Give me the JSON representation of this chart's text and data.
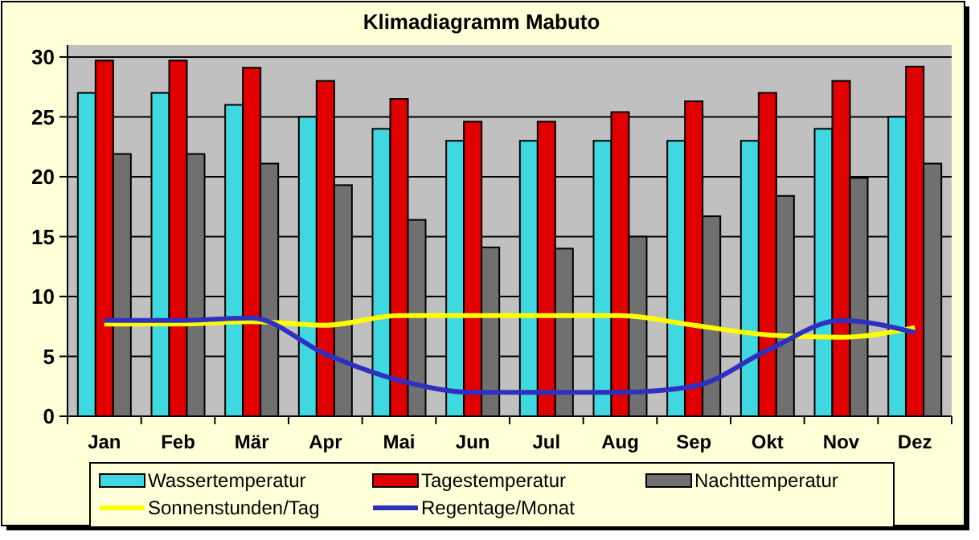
{
  "chart_data": {
    "type": "bar",
    "title": "Klimadiagramm Mabuto",
    "categories": [
      "Jan",
      "Feb",
      "Mär",
      "Apr",
      "Mai",
      "Jun",
      "Jul",
      "Aug",
      "Sep",
      "Okt",
      "Nov",
      "Dez"
    ],
    "series": [
      {
        "name": "Wassertemperatur",
        "color": "#40d8e0",
        "values": [
          27,
          27,
          26,
          25,
          24,
          23,
          23,
          23,
          23,
          23,
          24,
          25
        ]
      },
      {
        "name": "Tagestemperatur",
        "color": "#e00000",
        "values": [
          29.7,
          29.7,
          29.1,
          28,
          26.5,
          24.6,
          24.6,
          25.4,
          26.3,
          27,
          28,
          29.2
        ]
      },
      {
        "name": "Nachttemperatur",
        "color": "#707070",
        "values": [
          21.9,
          21.9,
          21.1,
          19.3,
          16.4,
          14.1,
          14,
          15,
          16.7,
          18.4,
          19.9,
          21.1
        ]
      },
      {
        "name": "Sonnenstunden/Tag",
        "type": "line",
        "color": "#ffff00",
        "values": [
          7.7,
          7.7,
          7.9,
          7.6,
          8.4,
          8.4,
          8.4,
          8.4,
          7.6,
          6.8,
          6.6,
          7.4
        ]
      },
      {
        "name": "Regentage/Monat",
        "type": "line",
        "color": "#3030c0",
        "values": [
          8,
          8,
          8.2,
          5.2,
          3,
          2,
          2,
          2,
          2.5,
          5.5,
          8,
          7
        ]
      }
    ],
    "ylim": [
      0,
      31
    ],
    "yticks": [
      0,
      5,
      10,
      15,
      20,
      25,
      30
    ],
    "grid": "y",
    "legend": "bottom",
    "marker": "none",
    "line_style": "solid"
  }
}
